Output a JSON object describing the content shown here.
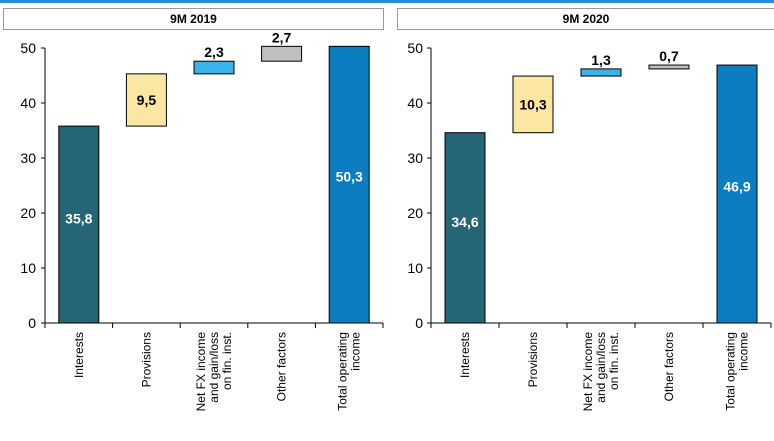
{
  "chart_data": [
    {
      "type": "waterfall",
      "title": "9M 2019",
      "categories": [
        "Interests",
        "Provisions",
        "Net FX income and gain/loss on fin. inst.",
        "Other factors",
        "Total operating income"
      ],
      "category_lines": [
        [
          "Interests"
        ],
        [
          "Provisions"
        ],
        [
          "Net FX income",
          "and gain/loss",
          "on fin. inst."
        ],
        [
          "Other factors"
        ],
        [
          "Total operating",
          "income"
        ]
      ],
      "values": [
        35.8,
        9.5,
        2.3,
        2.7,
        50.3
      ],
      "value_labels": [
        "35,8",
        "9,5",
        "2,3",
        "2,7",
        "50,3"
      ],
      "is_total": [
        false,
        false,
        false,
        false,
        true
      ],
      "ylim": [
        0,
        50
      ],
      "yticks": [
        0,
        10,
        20,
        30,
        40,
        50
      ],
      "colors": [
        "#246675",
        "#fbe7a1",
        "#39b3e8",
        "#bfbfbf",
        "#0b7dc0"
      ],
      "label_positions": [
        "inside",
        "inside",
        "above",
        "above",
        "inside"
      ],
      "label_colors": [
        "#ffffff",
        "#000000",
        "#000000",
        "#000000",
        "#ffffff"
      ]
    },
    {
      "type": "waterfall",
      "title": "9M 2020",
      "categories": [
        "Interests",
        "Provisions",
        "Net FX income and gain/loss on fin. inst.",
        "Other factors",
        "Total operating income"
      ],
      "category_lines": [
        [
          "Interests"
        ],
        [
          "Provisions"
        ],
        [
          "Net FX income",
          "and gain/loss",
          "on fin. inst."
        ],
        [
          "Other factors"
        ],
        [
          "Total operating",
          "income"
        ]
      ],
      "values": [
        34.6,
        10.3,
        1.3,
        0.7,
        46.9
      ],
      "value_labels": [
        "34,6",
        "10,3",
        "1,3",
        "0,7",
        "46,9"
      ],
      "is_total": [
        false,
        false,
        false,
        false,
        true
      ],
      "ylim": [
        0,
        50
      ],
      "yticks": [
        0,
        10,
        20,
        30,
        40,
        50
      ],
      "colors": [
        "#246675",
        "#fbe7a1",
        "#39b3e8",
        "#bfbfbf",
        "#0b7dc0"
      ],
      "label_positions": [
        "inside",
        "inside",
        "above",
        "above",
        "inside"
      ],
      "label_colors": [
        "#ffffff",
        "#000000",
        "#000000",
        "#000000",
        "#ffffff"
      ]
    }
  ]
}
